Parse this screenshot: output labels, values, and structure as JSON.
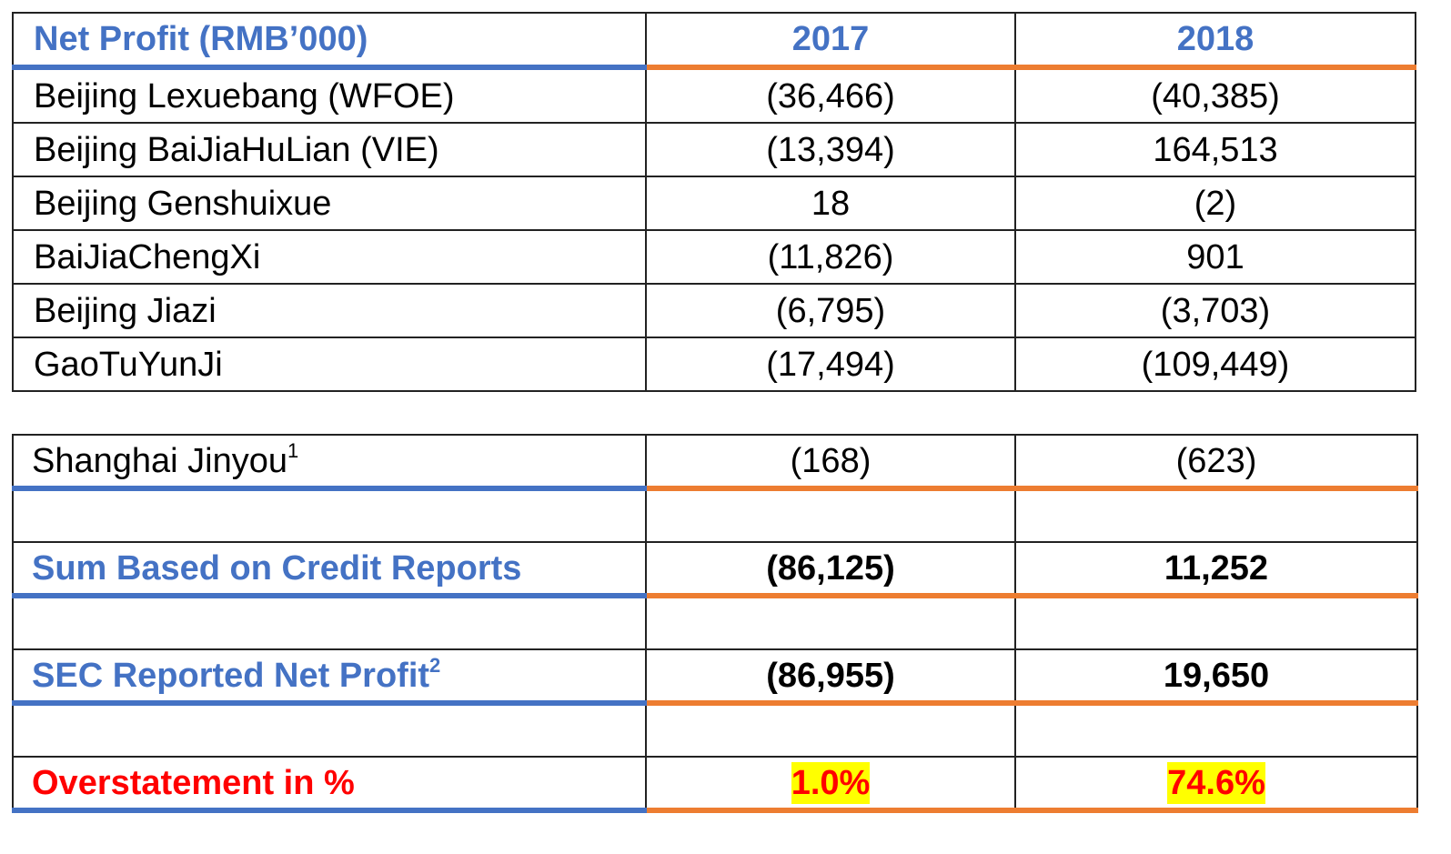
{
  "table1": {
    "header": {
      "label": "Net Profit (RMB’000)",
      "y2017": "2017",
      "y2018": "2018"
    },
    "rows": [
      {
        "name": "Beijing Lexuebang (WFOE)",
        "v2017": "(36,466)",
        "v2018": "(40,385)"
      },
      {
        "name": "Beijing BaiJiaHuLian (VIE)",
        "v2017": "(13,394)",
        "v2018": "164,513"
      },
      {
        "name": "Beijing Genshuixue",
        "v2017": "18",
        "v2018": "(2)"
      },
      {
        "name": "BaiJiaChengXi",
        "v2017": "(11,826)",
        "v2018": "901"
      },
      {
        "name": "Beijing Jiazi",
        "v2017": "(6,795)",
        "v2018": "(3,703)"
      },
      {
        "name": "GaoTuYunJi",
        "v2017": "(17,494)",
        "v2018": "(109,449)"
      }
    ]
  },
  "table2": {
    "jinyou": {
      "name": "Shanghai Jinyou",
      "footnote": "1",
      "v2017": "(168)",
      "v2018": "(623)"
    },
    "sum": {
      "name": "Sum Based on Credit Reports",
      "v2017": "(86,125)",
      "v2018": "11,252"
    },
    "sec": {
      "name": "SEC Reported Net Profit",
      "footnote": "2",
      "v2017": "(86,955)",
      "v2018": "19,650"
    },
    "overstatement": {
      "name": "Overstatement in %",
      "v2017": "1.0%",
      "v2018": "74.6%"
    }
  },
  "colors": {
    "header_blue": "#4472c4",
    "accent_orange": "#ed7d31",
    "alert_red": "#ff0000",
    "highlight_yellow": "#ffff00"
  }
}
